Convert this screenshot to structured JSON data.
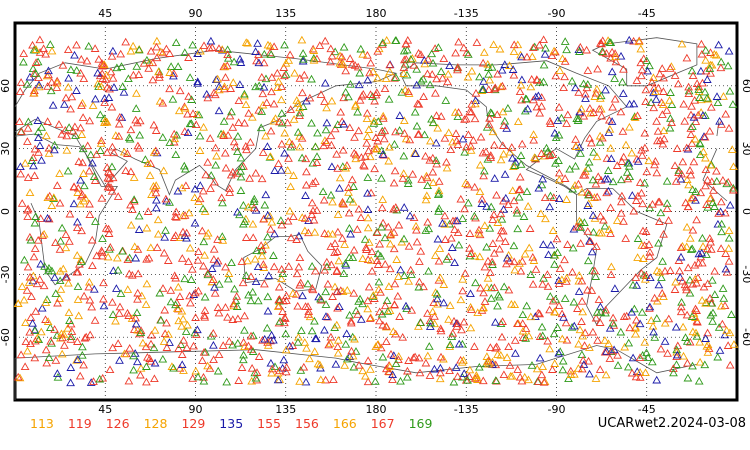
{
  "map": {
    "projection": "cylindrical equidistant",
    "lon_center": 0,
    "lon_ticks_top": [
      "45",
      "90",
      "135",
      "180",
      "-135",
      "-90",
      "-45"
    ],
    "lon_ticks_bottom": [
      "45",
      "90",
      "135",
      "180",
      "-135",
      "-90",
      "-45"
    ],
    "lat_ticks_left": [
      "60",
      "30",
      "0",
      "-30",
      "-60"
    ],
    "lat_ticks_right": [
      "60",
      "30",
      "0",
      "-30",
      "-60"
    ],
    "marker": "triangle-outline",
    "observation_count_hint": "dense global coverage"
  },
  "legend": {
    "items": [
      {
        "label": "113",
        "color": "#f5a300"
      },
      {
        "label": "119",
        "color": "#ee3a2a"
      },
      {
        "label": "126",
        "color": "#ee3a2a"
      },
      {
        "label": "128",
        "color": "#f5a300"
      },
      {
        "label": "129",
        "color": "#ee3a2a"
      },
      {
        "label": "135",
        "color": "#1a1aa8"
      },
      {
        "label": "155",
        "color": "#ee3a2a"
      },
      {
        "label": "156",
        "color": "#ee3a2a"
      },
      {
        "label": "166",
        "color": "#f5a300"
      },
      {
        "label": "167",
        "color": "#ee3a2a"
      },
      {
        "label": "169",
        "color": "#2f9a1a"
      }
    ]
  },
  "product_label": "UCARwet2.2024-03-08",
  "colors": {
    "red": "#ee3a2a",
    "orange": "#f5a300",
    "green": "#2f9a1a",
    "blue": "#1a1aa8",
    "coast": "#555555"
  }
}
